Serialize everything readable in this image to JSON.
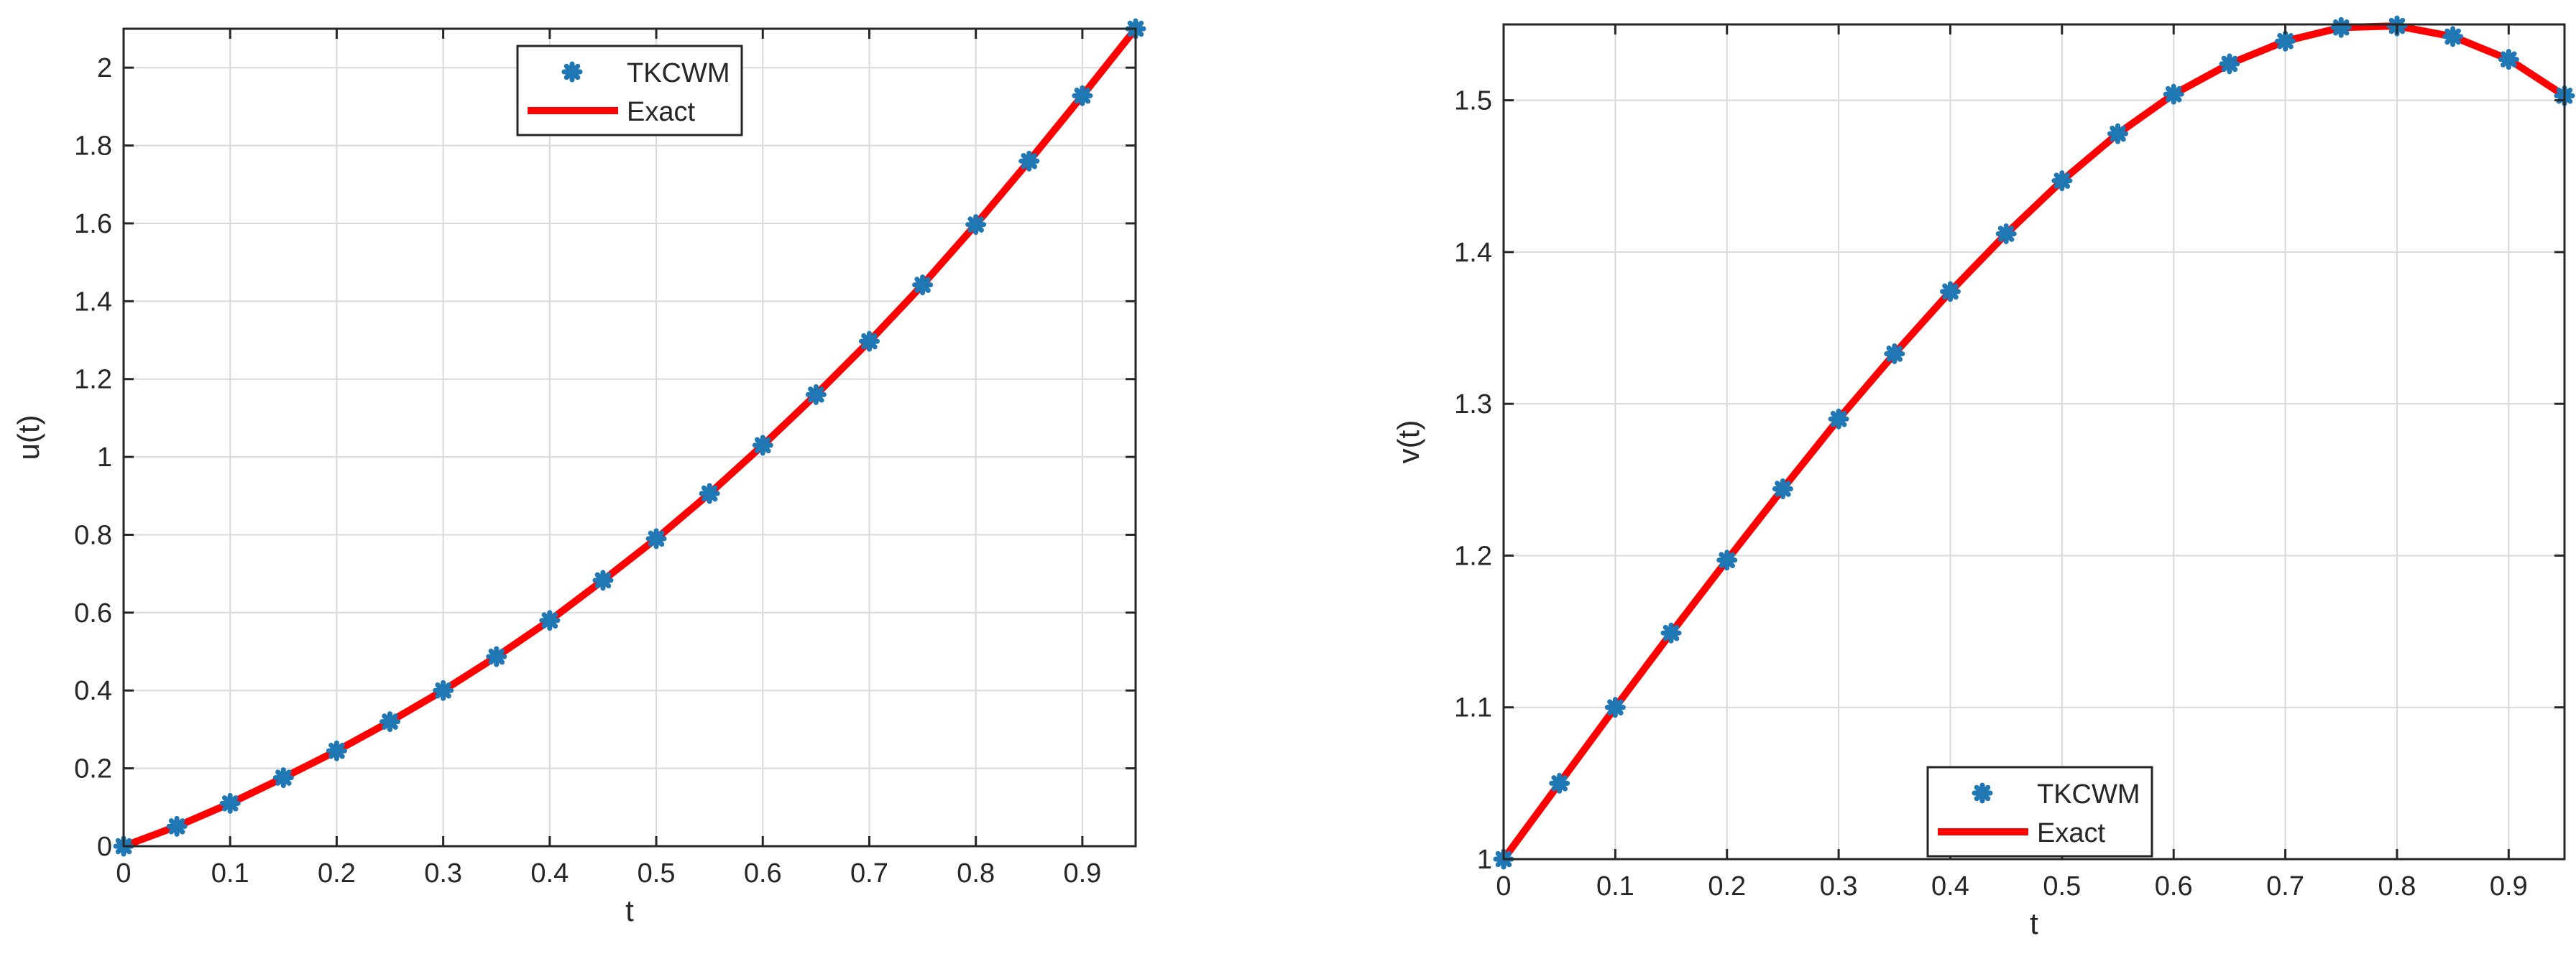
{
  "colors": {
    "marker": "#1f77b4",
    "line": "#ff0000",
    "grid": "#d9d9d9",
    "axis": "#262626",
    "background": "#ffffff"
  },
  "chart_data": [
    {
      "type": "line",
      "xlabel": "t",
      "ylabel": "u(t)",
      "xlim": [
        0,
        0.95
      ],
      "ylim": [
        0,
        2.1
      ],
      "xticks": [
        "0",
        "0.1",
        "0.2",
        "0.3",
        "0.4",
        "0.5",
        "0.6",
        "0.7",
        "0.8",
        "0.9"
      ],
      "yticks": [
        "0",
        "0.2",
        "0.4",
        "0.6",
        "0.8",
        "1",
        "1.2",
        "1.4",
        "1.6",
        "1.8",
        "2"
      ],
      "grid": true,
      "legend_position": "top-center",
      "x": [
        0,
        0.05,
        0.1,
        0.15,
        0.2,
        0.25,
        0.3,
        0.35,
        0.4,
        0.45,
        0.5,
        0.55,
        0.6,
        0.65,
        0.7,
        0.75,
        0.8,
        0.85,
        0.9,
        0.95
      ],
      "series": [
        {
          "name": "TKCWM",
          "style": "markers",
          "values": [
            0,
            0.051,
            0.11,
            0.176,
            0.245,
            0.32,
            0.4,
            0.487,
            0.58,
            0.683,
            0.79,
            0.906,
            1.03,
            1.16,
            1.297,
            1.442,
            1.597,
            1.76,
            1.928,
            2.1
          ]
        },
        {
          "name": "Exact",
          "style": "line",
          "values": [
            0,
            0.051,
            0.11,
            0.176,
            0.245,
            0.32,
            0.4,
            0.487,
            0.58,
            0.683,
            0.79,
            0.906,
            1.03,
            1.16,
            1.297,
            1.442,
            1.597,
            1.76,
            1.928,
            2.1
          ]
        }
      ]
    },
    {
      "type": "line",
      "xlabel": "t",
      "ylabel": "v(t)",
      "xlim": [
        0,
        0.95
      ],
      "ylim": [
        1,
        1.55
      ],
      "xticks": [
        "0",
        "0.1",
        "0.2",
        "0.3",
        "0.4",
        "0.5",
        "0.6",
        "0.7",
        "0.8",
        "0.9"
      ],
      "yticks": [
        "1",
        "1.1",
        "1.2",
        "1.3",
        "1.4",
        "1.5"
      ],
      "grid": true,
      "legend_position": "bottom-center",
      "x": [
        0,
        0.05,
        0.1,
        0.15,
        0.2,
        0.25,
        0.3,
        0.35,
        0.4,
        0.45,
        0.5,
        0.55,
        0.6,
        0.65,
        0.7,
        0.75,
        0.8,
        0.85,
        0.9,
        0.95
      ],
      "series": [
        {
          "name": "TKCWM",
          "style": "markers",
          "values": [
            1.0,
            1.05,
            1.1,
            1.149,
            1.197,
            1.244,
            1.29,
            1.333,
            1.374,
            1.412,
            1.447,
            1.478,
            1.504,
            1.524,
            1.539,
            1.548,
            1.549,
            1.542,
            1.527,
            1.503
          ]
        },
        {
          "name": "Exact",
          "style": "line",
          "values": [
            1.0,
            1.05,
            1.1,
            1.149,
            1.197,
            1.244,
            1.29,
            1.333,
            1.374,
            1.412,
            1.447,
            1.478,
            1.504,
            1.524,
            1.539,
            1.548,
            1.549,
            1.542,
            1.527,
            1.503
          ]
        }
      ]
    }
  ]
}
